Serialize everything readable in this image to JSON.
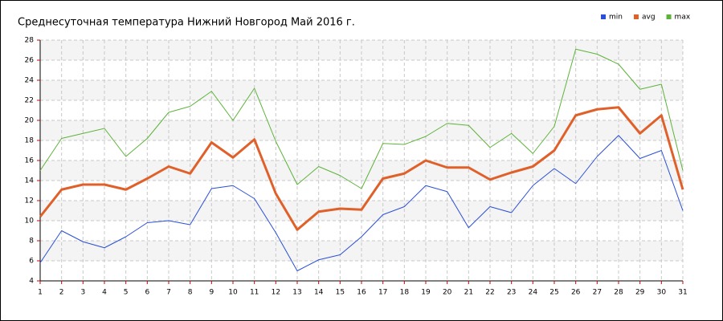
{
  "chart_data": {
    "type": "line",
    "title": "Среднесуточная температура Нижний Новгород  Май 2016 г.",
    "x": [
      1,
      2,
      3,
      4,
      5,
      6,
      7,
      8,
      9,
      10,
      11,
      12,
      13,
      14,
      15,
      16,
      17,
      18,
      19,
      20,
      21,
      22,
      23,
      24,
      25,
      26,
      27,
      28,
      29,
      30,
      31
    ],
    "xlim": [
      1,
      31
    ],
    "xticks": [
      1,
      2,
      3,
      4,
      5,
      6,
      7,
      8,
      9,
      10,
      11,
      12,
      13,
      14,
      15,
      16,
      17,
      18,
      19,
      20,
      21,
      22,
      23,
      24,
      25,
      26,
      27,
      28,
      29,
      30,
      31
    ],
    "ylim": [
      4,
      28
    ],
    "yticks": [
      4,
      6,
      8,
      10,
      12,
      14,
      16,
      18,
      20,
      22,
      24,
      26,
      28
    ],
    "grid": true,
    "legend": "top-right",
    "series": [
      {
        "name": "min",
        "color": "#2a4fd6",
        "width": 1,
        "values": [
          5.8,
          9.0,
          7.9,
          7.3,
          8.4,
          9.8,
          10.0,
          9.6,
          13.2,
          13.5,
          12.2,
          8.8,
          5.0,
          6.1,
          6.6,
          8.4,
          10.6,
          11.4,
          13.5,
          12.9,
          9.3,
          11.4,
          10.8,
          13.5,
          15.2,
          13.7,
          16.4,
          18.5,
          16.2,
          17.0,
          11.0
        ]
      },
      {
        "name": "avg",
        "color": "#e0602a",
        "width": 3,
        "values": [
          10.4,
          13.1,
          13.6,
          13.6,
          13.1,
          14.2,
          15.4,
          14.7,
          17.8,
          16.3,
          18.1,
          12.7,
          9.1,
          10.9,
          11.2,
          11.1,
          14.2,
          14.7,
          16.0,
          15.3,
          15.3,
          14.1,
          14.8,
          15.4,
          17.0,
          20.5,
          21.1,
          21.3,
          18.7,
          20.5,
          13.1
        ]
      },
      {
        "name": "max",
        "color": "#5db33a",
        "width": 1,
        "values": [
          15.0,
          18.2,
          18.7,
          19.2,
          16.4,
          18.2,
          20.8,
          21.4,
          22.9,
          20.0,
          23.2,
          17.9,
          13.6,
          15.4,
          14.5,
          13.2,
          17.7,
          17.6,
          18.4,
          19.7,
          19.5,
          17.3,
          18.7,
          16.7,
          19.4,
          27.1,
          26.6,
          25.6,
          23.1,
          23.6,
          15.0
        ]
      }
    ]
  }
}
